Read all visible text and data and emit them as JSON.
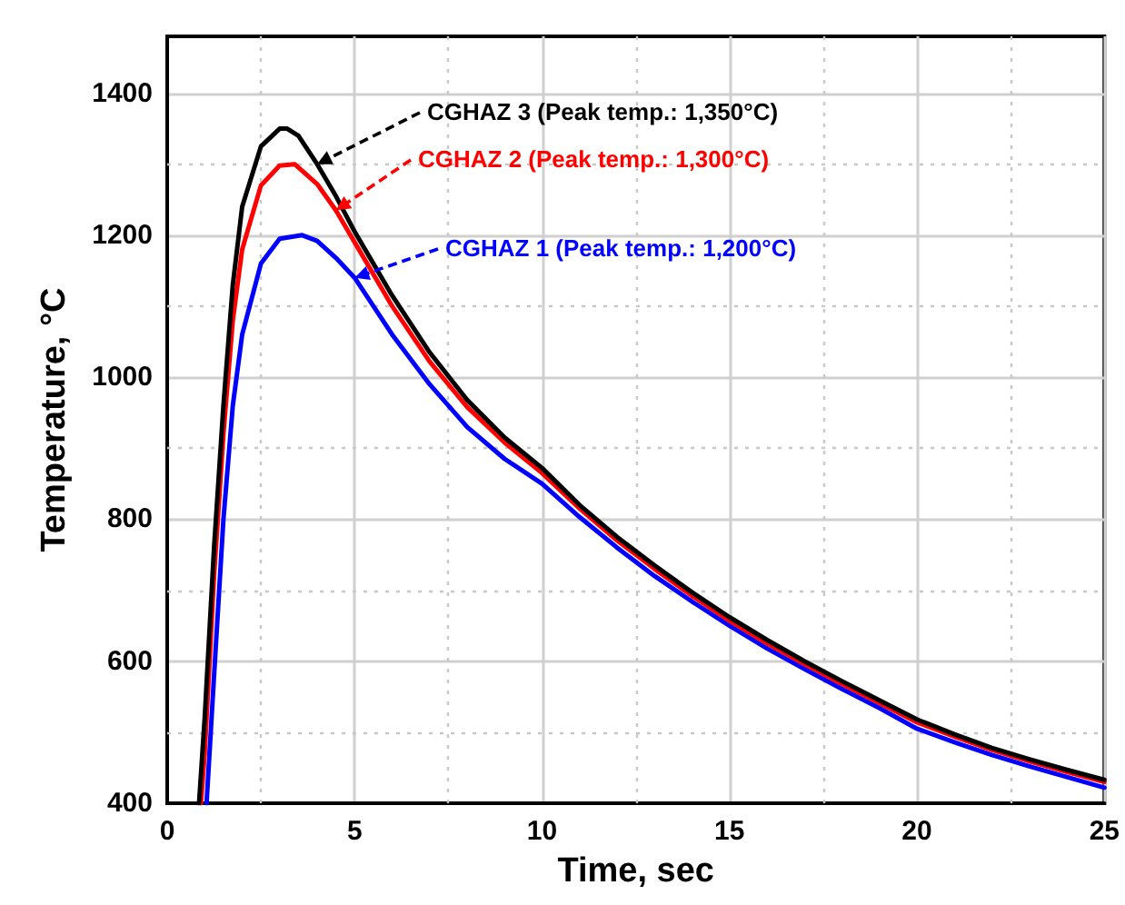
{
  "chart_data": {
    "type": "line",
    "xlabel": "Time, sec",
    "ylabel": "Temperature, °C",
    "xlim": [
      0,
      25
    ],
    "xticks": [
      0,
      5,
      10,
      15,
      20,
      25
    ],
    "ylim": [
      400,
      1480
    ],
    "yticks": [
      400,
      600,
      800,
      1000,
      1200,
      1400
    ],
    "grid": true,
    "marker": "none",
    "line_style": "solid",
    "series": [
      {
        "color": "#000000",
        "x": [
          0.85,
          1,
          1.25,
          1.5,
          1.75,
          2,
          2.5,
          3,
          3.2,
          3.5,
          4,
          4.5,
          5,
          6,
          7,
          8,
          9,
          10,
          11,
          12,
          13,
          14,
          15,
          16,
          17,
          18,
          19,
          20,
          21,
          22,
          23,
          24,
          25
        ],
        "values": [
          400,
          520,
          760,
          960,
          1130,
          1240,
          1325,
          1350,
          1350,
          1340,
          1300,
          1255,
          1205,
          1115,
          1035,
          968,
          915,
          872,
          820,
          775,
          735,
          697,
          662,
          630,
          600,
          572,
          545,
          518,
          497,
          478,
          462,
          447,
          433
        ]
      },
      {
        "color": "#ff0000",
        "x": [
          0.9,
          1,
          1.25,
          1.5,
          1.75,
          2,
          2.5,
          3,
          3.4,
          4,
          4.5,
          5,
          6,
          7,
          8,
          9,
          10,
          11,
          12,
          13,
          14,
          15,
          16,
          17,
          18,
          19,
          20,
          21,
          22,
          23,
          24,
          25
        ],
        "values": [
          400,
          470,
          720,
          920,
          1080,
          1180,
          1270,
          1298,
          1300,
          1272,
          1235,
          1190,
          1100,
          1022,
          958,
          908,
          865,
          815,
          770,
          730,
          692,
          657,
          625,
          596,
          568,
          541,
          514,
          494,
          475,
          459,
          444,
          430
        ]
      },
      {
        "color": "#0000ff",
        "x": [
          1.05,
          1.25,
          1.5,
          1.75,
          2,
          2.5,
          3,
          3.6,
          4,
          4.5,
          5,
          6,
          7,
          8,
          9,
          10,
          11,
          12,
          13,
          14,
          15,
          16,
          17,
          18,
          19,
          20,
          21,
          22,
          23,
          24,
          25
        ],
        "values": [
          400,
          580,
          800,
          960,
          1060,
          1160,
          1195,
          1200,
          1192,
          1168,
          1140,
          1060,
          990,
          930,
          885,
          850,
          803,
          760,
          720,
          684,
          650,
          618,
          589,
          561,
          534,
          505,
          486,
          468,
          452,
          437,
          422
        ]
      }
    ],
    "annotations": [
      {
        "text": "CGHAZ 3 (Peak temp.: 1,350°C)",
        "x": 4,
        "y": 1300
      },
      {
        "text": "CGHAZ 2 (Peak temp.: 1,300°C)",
        "x": 4.5,
        "y": 1235
      },
      {
        "text": "CGHAZ 1 (Peak temp.: 1,200°C)",
        "x": 5,
        "y": 1140
      }
    ]
  }
}
